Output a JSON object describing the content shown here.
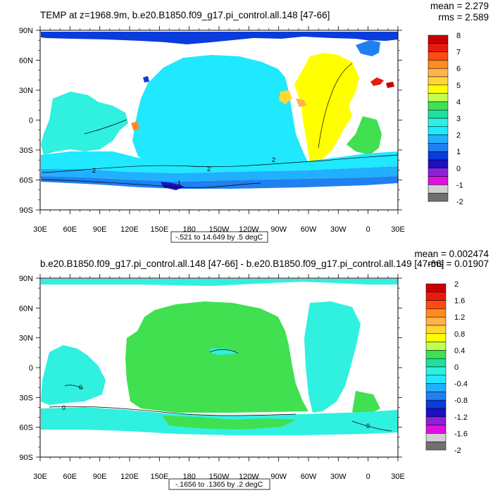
{
  "chart_data": [
    {
      "type": "heatmap",
      "title": "TEMP at z=1968.9m, b.e20.B1850.f09_g17.pi_control.all.148 [47-66]",
      "stats": {
        "mean": "mean = 2.279",
        "rms": "rms = 2.589"
      },
      "x_ticks": [
        "30E",
        "60E",
        "90E",
        "120E",
        "150E",
        "180",
        "150W",
        "120W",
        "90W",
        "60W",
        "30W",
        "0",
        "30E"
      ],
      "y_ticks": [
        "90N",
        "60N",
        "30N",
        "0",
        "30S",
        "60S",
        "90S"
      ],
      "xlim": [
        30,
        390
      ],
      "ylim": [
        -90,
        90
      ],
      "range_text": "-.521 to 14.649 by .5 degC",
      "contour_labels": [
        "2",
        "2",
        "2",
        "1"
      ],
      "colorbar": {
        "labels": [
          "8",
          "7",
          "6",
          "5",
          "4",
          "3",
          "2",
          "1",
          "0",
          "-1",
          "-2"
        ],
        "colors": [
          "#c80000",
          "#e81a10",
          "#ff4a15",
          "#ff8a1f",
          "#ffb24d",
          "#ffd633",
          "#ffff00",
          "#c0ff50",
          "#40e050",
          "#20e0a0",
          "#30f0e0",
          "#20e8ff",
          "#20b0ff",
          "#2080f0",
          "#0a3cdc",
          "#1a10c0",
          "#9020d8",
          "#e010e0",
          "#d0d0d0",
          "#707070"
        ]
      }
    },
    {
      "type": "heatmap",
      "title": "b.e20.B1850.f09_g17.pi_control.all.148 [47-66] - b.e20.B1850.f09_g17.pi_control.all.149 [47-66]",
      "stats": {
        "mean": "mean = 0.002474",
        "rms": "rms = 0.01907"
      },
      "x_ticks": [
        "30E",
        "60E",
        "90E",
        "120E",
        "150E",
        "180",
        "150W",
        "120W",
        "90W",
        "60W",
        "30W",
        "0",
        "30E"
      ],
      "y_ticks": [
        "90N",
        "60N",
        "30N",
        "0",
        "30S",
        "60S",
        "90S"
      ],
      "xlim": [
        30,
        390
      ],
      "ylim": [
        -90,
        90
      ],
      "range_text": "-.1656 to .1365 by .2 degC",
      "contour_labels": [
        "0",
        "0",
        "0"
      ],
      "colorbar": {
        "labels": [
          "2",
          "1.6",
          "1.2",
          "0.8",
          "0.4",
          "0",
          "-0.4",
          "-0.8",
          "-1.2",
          "-1.6",
          "-2"
        ],
        "colors": [
          "#c80000",
          "#e81a10",
          "#ff4a15",
          "#ff8a1f",
          "#ffb24d",
          "#ffd633",
          "#ffff00",
          "#c0ff50",
          "#40e050",
          "#20e0a0",
          "#30f0e0",
          "#20e8ff",
          "#20b0ff",
          "#2080f0",
          "#0a3cdc",
          "#1a10c0",
          "#9020d8",
          "#e010e0",
          "#d0d0d0",
          "#707070"
        ]
      }
    }
  ]
}
